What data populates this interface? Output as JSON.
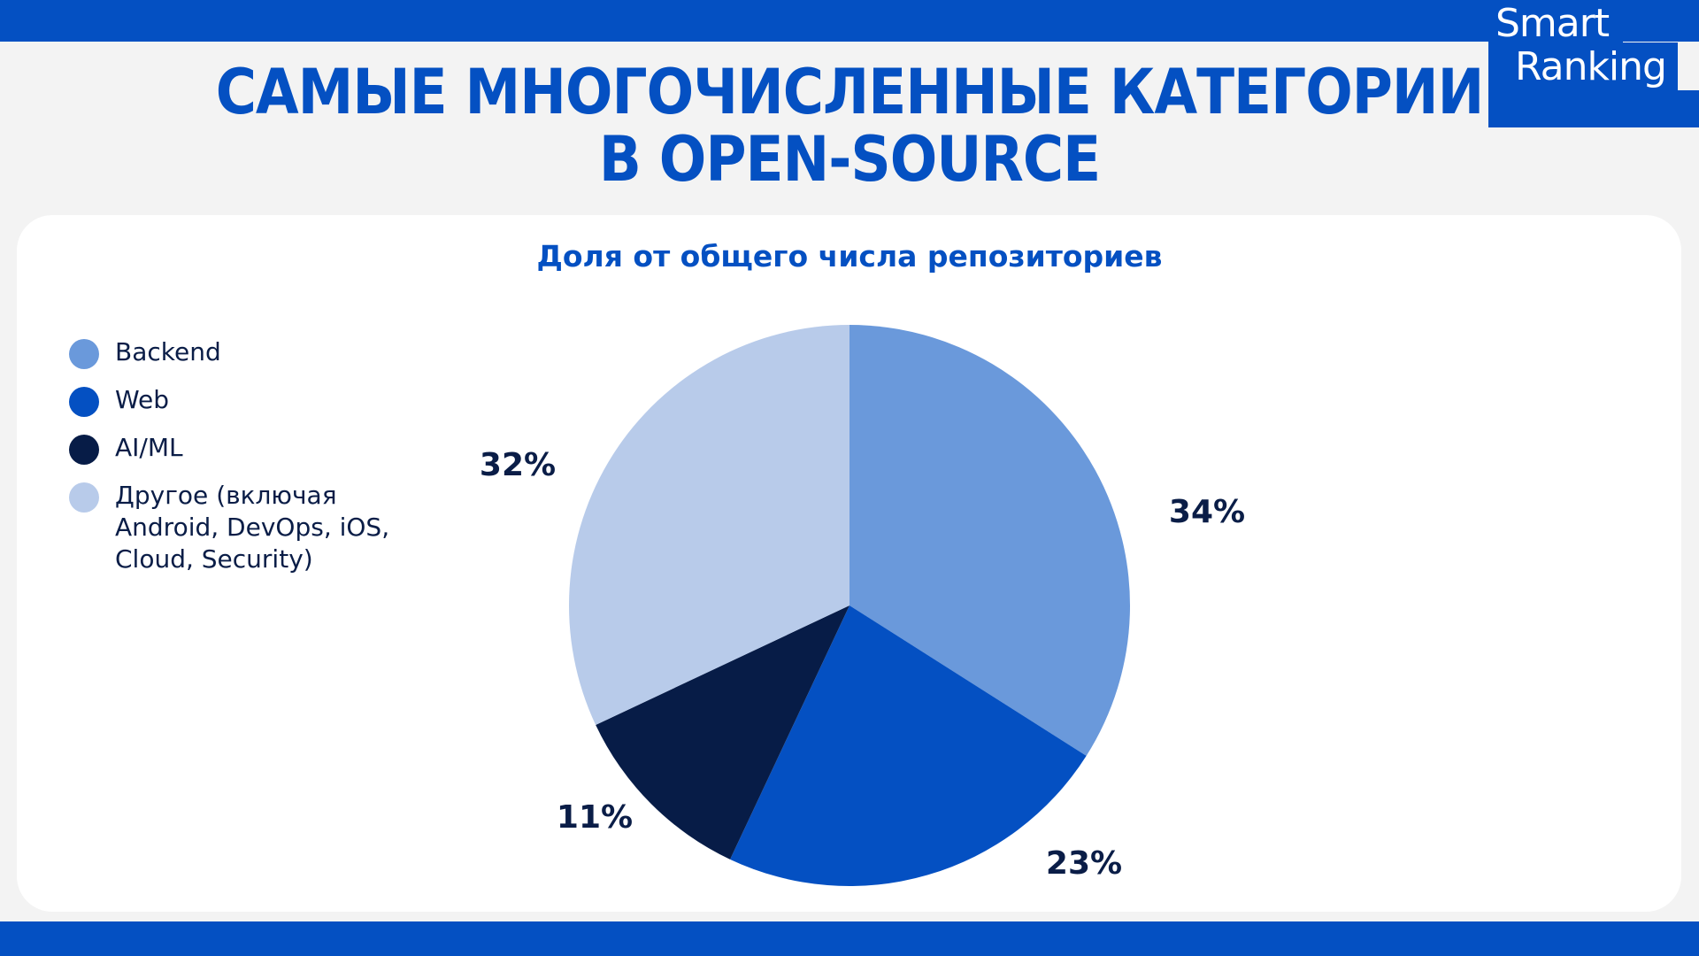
{
  "header": {
    "title_line1": "САМЫЕ МНОГОЧИСЛЕННЫЕ КАТЕГОРИИ",
    "title_line2": "В OPEN-SOURCE"
  },
  "logo": {
    "line1": "Smart",
    "line2": "Ranking"
  },
  "colors": {
    "brand_blue": "#0450c2",
    "background": "#f3f3f3",
    "card": "#ffffff",
    "text_dark": "#0a1d47"
  },
  "chart_data": {
    "type": "pie",
    "title": "Доля от общего числа репозиториев",
    "legend_position": "left",
    "start": "top",
    "direction": "clockwise",
    "slices": [
      {
        "label": "Backend",
        "value": 34,
        "value_label": "34%",
        "color": "#6a99db"
      },
      {
        "label": "Web",
        "value": 23,
        "value_label": "23%",
        "color": "#0450c2"
      },
      {
        "label": "AI/ML",
        "value": 11,
        "value_label": "11%",
        "color": "#071c47"
      },
      {
        "label": "Другое (включая Android, DevOps, iOS, Cloud, Security)",
        "value": 32,
        "value_label": "32%",
        "color": "#b8cbea"
      }
    ]
  }
}
